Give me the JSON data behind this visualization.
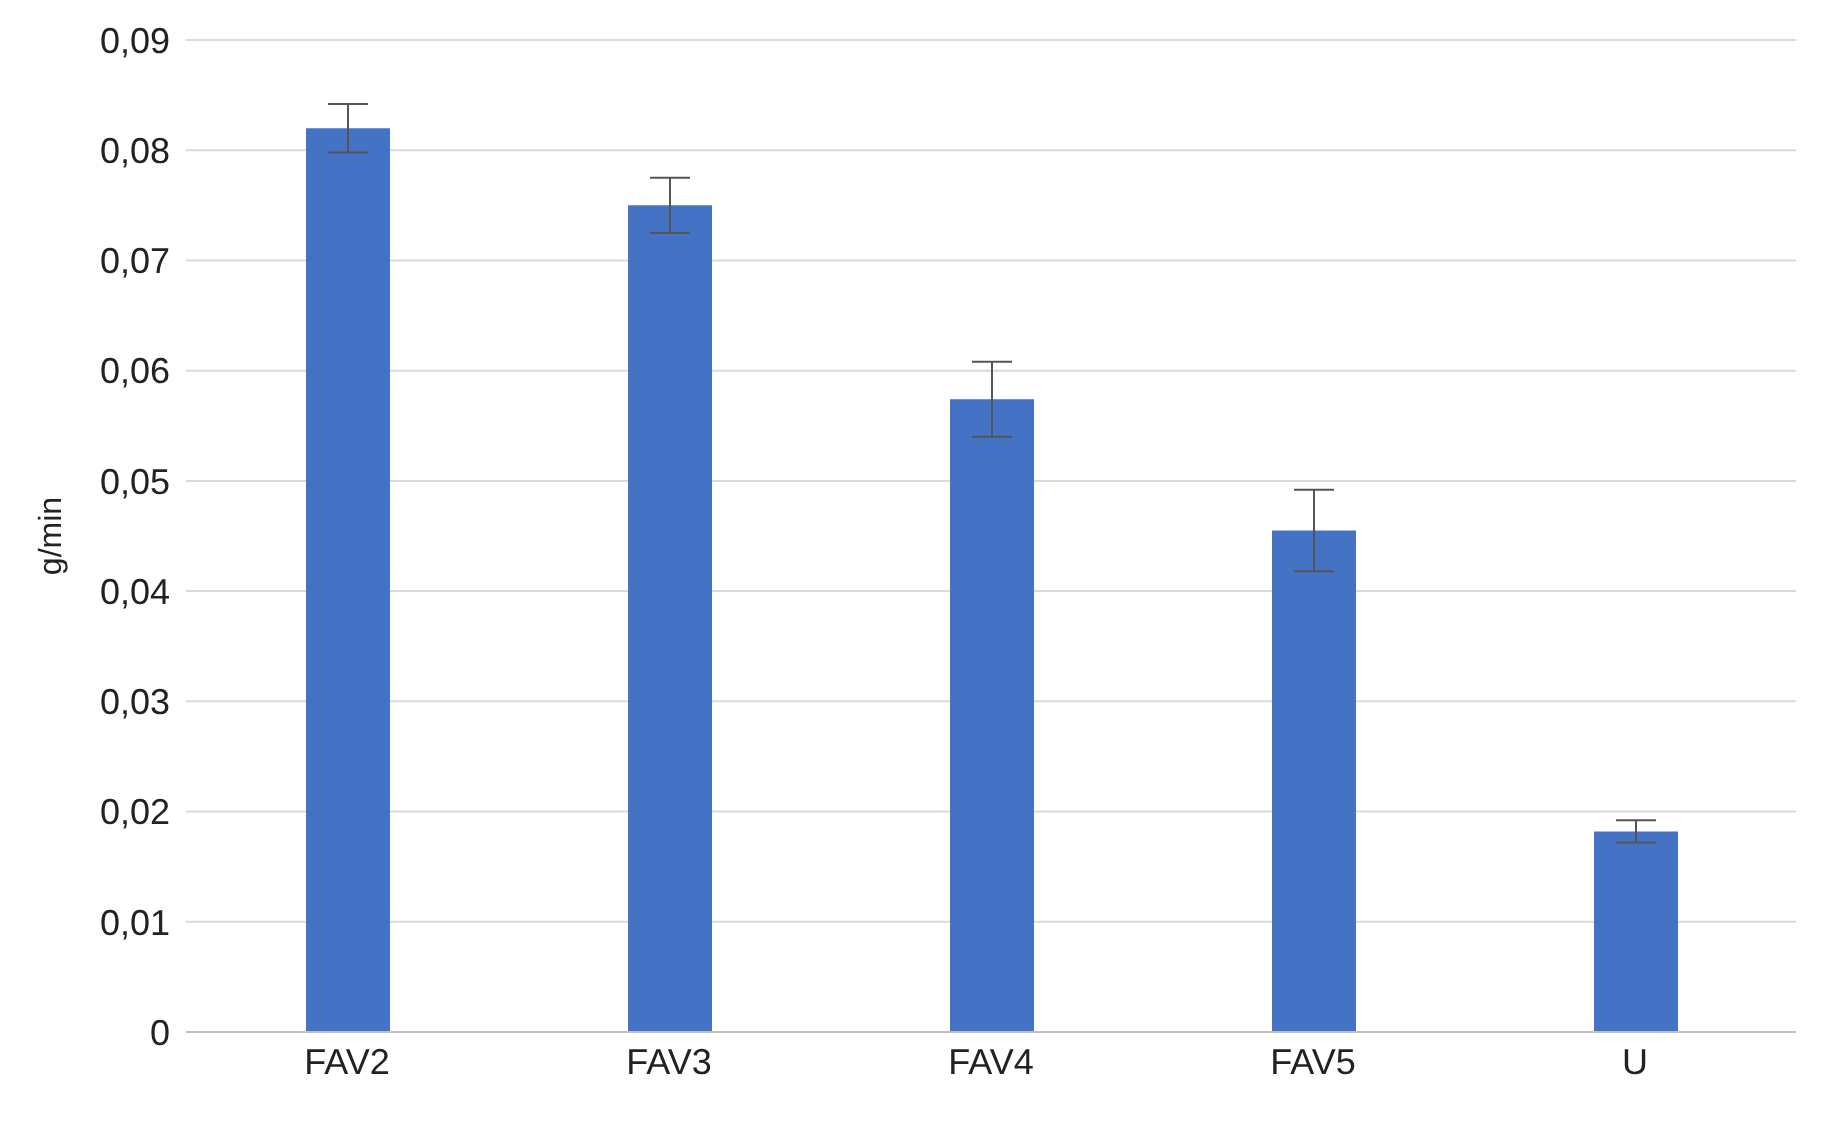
{
  "chart_data": {
    "type": "bar",
    "ylabel": "g/min",
    "categories": [
      "FAV2",
      "FAV3",
      "FAV4",
      "FAV5",
      "U"
    ],
    "values": [
      0.082,
      0.075,
      0.0574,
      0.0455,
      0.0182
    ],
    "errors": [
      0.0022,
      0.0025,
      0.0034,
      0.0037,
      0.001
    ],
    "color": "#4472c4",
    "ylim": [
      0,
      0.09
    ],
    "yticks": [
      0,
      {
        "value": 0.01,
        "label": "0,01"
      },
      {
        "value": 0.02,
        "label": "0,02"
      },
      {
        "value": 0.03,
        "label": "0,03"
      },
      {
        "value": 0.04,
        "label": "0,04"
      },
      {
        "value": 0.05,
        "label": "0,05"
      },
      {
        "value": 0.06,
        "label": "0,06"
      },
      {
        "value": 0.07,
        "label": "0,07"
      },
      {
        "value": 0.08,
        "label": "0,08"
      },
      {
        "value": 0.09,
        "label": "0,09"
      }
    ],
    "grid": "y"
  }
}
